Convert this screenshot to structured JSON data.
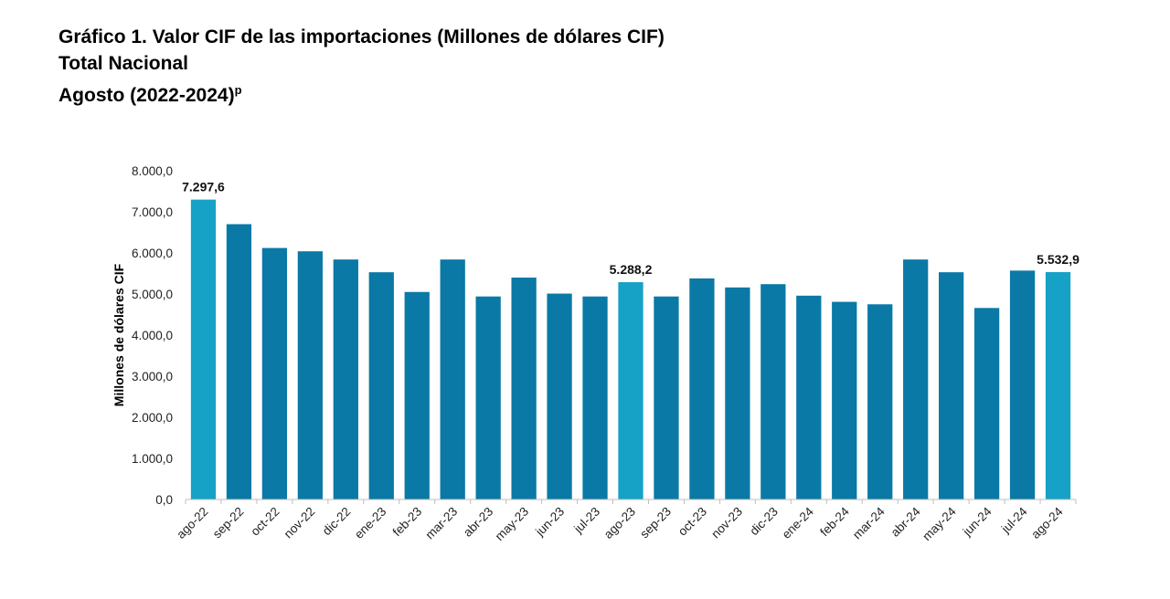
{
  "header": {
    "title": "Gráfico 1. Valor CIF de las importaciones (Millones de dólares CIF)",
    "subtitle": "Total Nacional",
    "period": "Agosto (2022-2024)",
    "period_superscript": "p"
  },
  "colors": {
    "highlight": "#16a1c6",
    "regular": "#0a79a6",
    "axis": "#bfbfbf"
  },
  "chart_data": {
    "type": "bar",
    "title": "Gráfico 1. Valor CIF de las importaciones (Millones de dólares CIF)",
    "xlabel": "",
    "ylabel": "Millones de dólares CIF",
    "ylim": [
      0,
      8000
    ],
    "yticks": [
      0,
      1000,
      2000,
      3000,
      4000,
      5000,
      6000,
      7000,
      8000
    ],
    "ytick_labels": [
      "0,0",
      "1.000,0",
      "2.000,0",
      "3.000,0",
      "4.000,0",
      "5.000,0",
      "6.000,0",
      "7.000,0",
      "8.000,0"
    ],
    "grid": false,
    "categories": [
      "ago-22",
      "sep-22",
      "oct-22",
      "nov-22",
      "dic-22",
      "ene-23",
      "feb-23",
      "mar-23",
      "abr-23",
      "may-23",
      "jun-23",
      "jul-23",
      "ago-23",
      "sep-23",
      "oct-23",
      "nov-23",
      "dic-23",
      "ene-24",
      "feb-24",
      "mar-24",
      "abr-24",
      "may-24",
      "jun-24",
      "jul-24",
      "ago-24"
    ],
    "values": [
      7297.6,
      6700,
      6120,
      6040,
      5840,
      5530,
      5050,
      5840,
      4940,
      5400,
      5010,
      4940,
      5288.2,
      4940,
      5380,
      5160,
      5240,
      4960,
      4810,
      4750,
      5840,
      5530,
      4660,
      5570,
      5532.9
    ],
    "highlighted": [
      "ago-22",
      "ago-23",
      "ago-24"
    ],
    "data_labels": [
      {
        "category": "ago-22",
        "text": "7.297,6"
      },
      {
        "category": "ago-23",
        "text": "5.288,2"
      },
      {
        "category": "ago-24",
        "text": "5.532,9"
      }
    ]
  }
}
